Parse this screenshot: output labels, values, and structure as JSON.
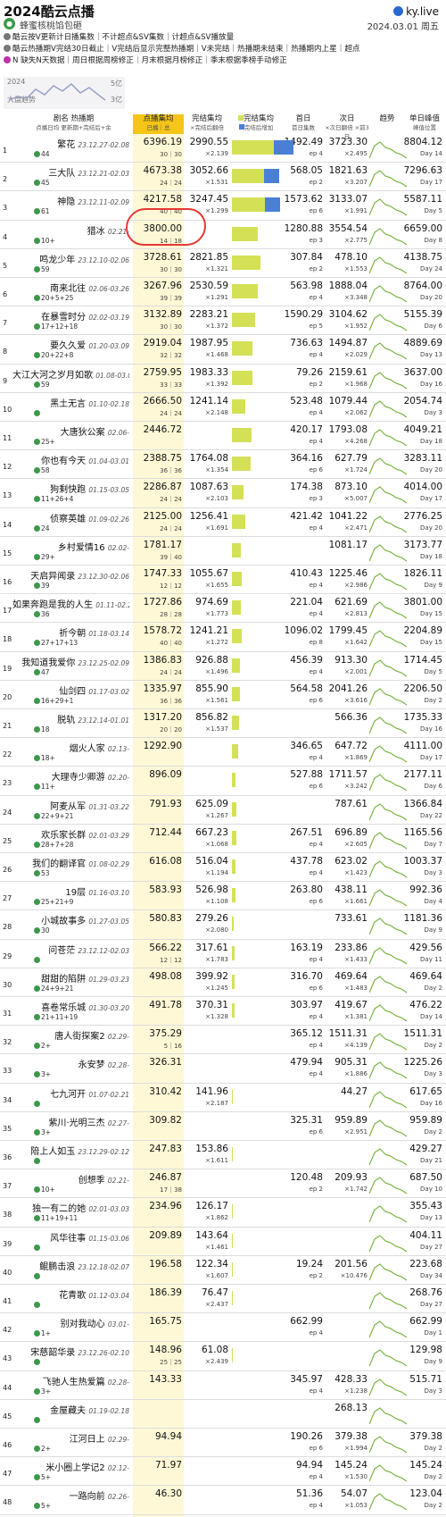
{
  "header": {
    "title": "2024酷云点播",
    "subtitle": "蜂蜜核桃馅包砸",
    "brand": "ky.live",
    "date": "2024.03.01 周五",
    "notes": [
      "酷云按V更新计日播集数｜不计超点&SV集数｜计超点&SV播放量",
      "酷云热播期V完结30日截止｜V完结后显示完整热播期｜V未完结｜热播期未结束｜热播期内上星｜超点",
      "N 缺失N天数据｜周日根据周榜修正｜月末根据月榜修正｜季末根据季榜手动修正"
    ],
    "mini": {
      "label": "大盘趋势",
      "year": "2024",
      "v1": "5亿",
      "v2": "3亿",
      "x": "3"
    }
  },
  "columns": {
    "name": "剧名 热播期",
    "name_sub": "点播日均 更新期+完结后+余",
    "avg": "点播集均",
    "avg_sub": "已播｜总",
    "done": "完结集均",
    "done_sub": "×完结后翻倍",
    "legend1": "完结集均",
    "legend2": "完结后增加",
    "first": "首日",
    "first_sub": "首日集数",
    "next": "次日",
    "next_sub": "×次日翻倍 ×前3日",
    "trend": "趋势",
    "peak": "单日峰值",
    "peak_sub": "峰值位置",
    "unit": "万"
  },
  "rows": [
    {
      "rank": "1",
      "name": "繁花",
      "date": "23.12.27-02.08",
      "ep": "44",
      "avg": "6396.19",
      "avg_sub": "30｜30",
      "done": "2990.55",
      "done_sub": "×2.139",
      "bar": 0.9,
      "first": "1492.49",
      "first_ep": "ep 4",
      "next": "3723.30",
      "next_sub": "×2.495",
      "peak": "8804.12",
      "peak_sub": "Day 14"
    },
    {
      "rank": "2",
      "name": "三大队",
      "date": "23.12.21-02.03",
      "ep": "45",
      "avg": "4673.38",
      "avg_sub": "24｜24",
      "done": "3052.66",
      "done_sub": "×1.531",
      "bar": 0.7,
      "first": "568.05",
      "first_ep": "ep 2",
      "next": "1821.63",
      "next_sub": "×3.207",
      "peak": "7296.63",
      "peak_sub": "Day 17"
    },
    {
      "rank": "3",
      "name": "神隐",
      "date": "23.12.11-02.09",
      "ep": "61",
      "avg": "4217.58",
      "avg_sub": "40｜40",
      "done": "3247.45",
      "done_sub": "×1.299",
      "bar": 0.72,
      "first": "1573.62",
      "first_ep": "ep 6",
      "next": "3133.07",
      "next_sub": "×1.991",
      "peak": "5587.11",
      "peak_sub": "Day 5"
    },
    {
      "rank": "4",
      "name": "猎冰",
      "date": "02.21-",
      "ep": "10+",
      "avg": "3800.00",
      "avg_sub": "14｜18",
      "done": "",
      "done_sub": "",
      "bar": 0.55,
      "first": "1280.88",
      "first_ep": "ep 3",
      "next": "3554.54",
      "next_sub": "×2.775",
      "peak": "6659.00",
      "peak_sub": "Day 8"
    },
    {
      "rank": "5",
      "name": "鸣龙少年",
      "date": "23.12.10-02.06",
      "ep": "59",
      "avg": "3728.61",
      "avg_sub": "30｜30",
      "done": "2821.85",
      "done_sub": "×1.321",
      "bar": 0.62,
      "first": "307.84",
      "first_ep": "ep 2",
      "next": "478.10",
      "next_sub": "×1.553",
      "peak": "4138.75",
      "peak_sub": "Day 24"
    },
    {
      "rank": "6",
      "name": "南来北往",
      "date": "02.06-03.26",
      "ep": "20+5+25",
      "avg": "3267.96",
      "avg_sub": "39｜39",
      "done": "2530.59",
      "done_sub": "×1.291",
      "bar": 0.56,
      "first": "563.98",
      "first_ep": "ep 4",
      "next": "1888.04",
      "next_sub": "×3.348",
      "peak": "8764.00",
      "peak_sub": "Day 20"
    },
    {
      "rank": "7",
      "name": "在暴雪时分",
      "date": "02.02-03.19",
      "ep": "17+12+18",
      "avg": "3132.89",
      "avg_sub": "30｜30",
      "done": "2283.21",
      "done_sub": "×1.372",
      "bar": 0.5,
      "first": "1590.29",
      "first_ep": "ep 5",
      "next": "3104.62",
      "next_sub": "×1.952",
      "peak": "5155.39",
      "peak_sub": "Day 6"
    },
    {
      "rank": "8",
      "name": "要久久爱",
      "date": "01.20-03.09",
      "ep": "20+22+8",
      "avg": "2919.04",
      "avg_sub": "32｜32",
      "done": "1987.95",
      "done_sub": "×1.468",
      "bar": 0.44,
      "first": "736.63",
      "first_ep": "ep 4",
      "next": "1494.87",
      "next_sub": "×2.029",
      "peak": "4889.69",
      "peak_sub": "Day 13"
    },
    {
      "rank": "9",
      "name": "大江大河之岁月如歌",
      "date": "01.08-03.01",
      "ep": "59",
      "avg": "2759.95",
      "avg_sub": "33｜33",
      "done": "1983.33",
      "done_sub": "×1.392",
      "bar": 0.44,
      "first": "79.26",
      "first_ep": "ep 2",
      "next": "2159.61",
      "next_sub": "×1.968",
      "peak": "3637.00",
      "peak_sub": "Day 16"
    },
    {
      "rank": "10",
      "name": "黑土无言",
      "date": "01.10-02.18",
      "ep": "",
      "avg": "2666.50",
      "avg_sub": "24｜24",
      "done": "1241.14",
      "done_sub": "×2.148",
      "bar": 0.28,
      "first": "523.48",
      "first_ep": "ep 4",
      "next": "1079.44",
      "next_sub": "×2.062",
      "peak": "2054.74",
      "peak_sub": "Day 3"
    },
    {
      "rank": "11",
      "name": "大唐狄公案",
      "date": "02.06-",
      "ep": "25+",
      "avg": "2446.72",
      "avg_sub": "",
      "done": "",
      "done_sub": "",
      "bar": 0.42,
      "first": "420.17",
      "first_ep": "ep 4",
      "next": "1793.08",
      "next_sub": "×4.268",
      "peak": "4049.21",
      "peak_sub": "Day 18"
    },
    {
      "rank": "12",
      "name": "你也有今天",
      "date": "01.04-03.01",
      "ep": "58",
      "avg": "2388.75",
      "avg_sub": "36｜36",
      "done": "1764.08",
      "done_sub": "×1.354",
      "bar": 0.4,
      "first": "364.16",
      "first_ep": "ep 6",
      "next": "627.79",
      "next_sub": "×1.724",
      "peak": "3283.11",
      "peak_sub": "Day 20"
    },
    {
      "rank": "13",
      "name": "狗剩快跑",
      "date": "01.15-03.05",
      "ep": "11+26+4",
      "avg": "2286.87",
      "avg_sub": "24｜24",
      "done": "1087.63",
      "done_sub": "×2.103",
      "bar": 0.25,
      "first": "174.38",
      "first_ep": "ep 3",
      "next": "873.10",
      "next_sub": "×5.007",
      "peak": "4014.00",
      "peak_sub": "Day 17"
    },
    {
      "rank": "14",
      "name": "侦察英雄",
      "date": "01.09-02.26",
      "ep": "24",
      "avg": "2125.00",
      "avg_sub": "24｜24",
      "done": "1256.41",
      "done_sub": "×1.691",
      "bar": 0.28,
      "first": "421.42",
      "first_ep": "ep 4",
      "next": "1041.22",
      "next_sub": "×2.471",
      "peak": "2776.25",
      "peak_sub": "Day 20"
    },
    {
      "rank": "15",
      "name": "乡村爱情16",
      "date": "02.02-",
      "ep": "29+",
      "avg": "1781.17",
      "avg_sub": "39｜40",
      "done": "",
      "done_sub": "",
      "bar": 0.2,
      "first": "",
      "first_ep": "",
      "next": "1081.17",
      "next_sub": "",
      "peak": "3173.77",
      "peak_sub": "Day 18"
    },
    {
      "rank": "16",
      "name": "天启异闻录",
      "date": "23.12.30-02.06",
      "ep": "39",
      "avg": "1747.33",
      "avg_sub": "12｜12",
      "done": "1055.67",
      "done_sub": "×1.655",
      "bar": 0.22,
      "first": "410.43",
      "first_ep": "ep 4",
      "next": "1225.46",
      "next_sub": "×2.986",
      "peak": "1826.11",
      "peak_sub": "Day 9"
    },
    {
      "rank": "17",
      "name": "如果奔跑是我的人生",
      "date": "01.11-02.22",
      "ep": "36",
      "avg": "1727.86",
      "avg_sub": "28｜28",
      "done": "974.69",
      "done_sub": "×1.773",
      "bar": 0.2,
      "first": "221.04",
      "first_ep": "ep 4",
      "next": "621.69",
      "next_sub": "×2.813",
      "peak": "3801.00",
      "peak_sub": "Day 15"
    },
    {
      "rank": "18",
      "name": "祈今朝",
      "date": "01.18-03.14",
      "ep": "27+17+13",
      "avg": "1578.72",
      "avg_sub": "40｜40",
      "done": "1241.21",
      "done_sub": "×1.272",
      "bar": 0.22,
      "first": "1096.02",
      "first_ep": "ep 8",
      "next": "1799.45",
      "next_sub": "×1.642",
      "peak": "2204.89",
      "peak_sub": "Day 15"
    },
    {
      "rank": "19",
      "name": "我知道我爱你",
      "date": "23.12.25-02.09",
      "ep": "47",
      "avg": "1386.83",
      "avg_sub": "24｜24",
      "done": "926.88",
      "done_sub": "×1.496",
      "bar": 0.18,
      "first": "456.39",
      "first_ep": "ep 4",
      "next": "913.30",
      "next_sub": "×2.001",
      "peak": "1714.45",
      "peak_sub": "Day 5"
    },
    {
      "rank": "20",
      "name": "仙剑四",
      "date": "01.17-03.02",
      "ep": "16+29+1",
      "avg": "1335.97",
      "avg_sub": "36｜36",
      "done": "855.90",
      "done_sub": "×1.561",
      "bar": 0.18,
      "first": "564.58",
      "first_ep": "ep 6",
      "next": "2041.26",
      "next_sub": "×3.616",
      "peak": "2206.50",
      "peak_sub": "Day 2"
    },
    {
      "rank": "21",
      "name": "脱轨",
      "date": "23.12.14-01.01",
      "ep": "18",
      "avg": "1317.20",
      "avg_sub": "20｜20",
      "done": "856.82",
      "done_sub": "×1.537",
      "bar": 0.16,
      "first": "",
      "first_ep": "",
      "next": "566.36",
      "next_sub": "",
      "peak": "1735.33",
      "peak_sub": "Day 16"
    },
    {
      "rank": "22",
      "name": "烟火人家",
      "date": "02.13-",
      "ep": "18+",
      "avg": "1292.90",
      "avg_sub": "",
      "done": "",
      "done_sub": "",
      "bar": 0.14,
      "first": "346.65",
      "first_ep": "ep 4",
      "next": "647.72",
      "next_sub": "×1.869",
      "peak": "4111.00",
      "peak_sub": "Day 17"
    },
    {
      "rank": "23",
      "name": "大理寺少卿游",
      "date": "02.20-",
      "ep": "11+",
      "avg": "896.09",
      "avg_sub": "",
      "done": "",
      "done_sub": "",
      "bar": 0.08,
      "first": "527.88",
      "first_ep": "ep 6",
      "next": "1711.57",
      "next_sub": "×3.242",
      "peak": "2177.11",
      "peak_sub": "Day 6"
    },
    {
      "rank": "24",
      "name": "阿麦从军",
      "date": "01.31-03.22",
      "ep": "22+9+21",
      "avg": "791.93",
      "avg_sub": "",
      "done": "625.09",
      "done_sub": "×1.267",
      "bar": 0.09,
      "first": "",
      "first_ep": "",
      "next": "787.61",
      "next_sub": "",
      "peak": "1366.84",
      "peak_sub": "Day 22"
    },
    {
      "rank": "25",
      "name": "欢乐家长群",
      "date": "02.01-03.29",
      "ep": "28+7+28",
      "avg": "712.44",
      "avg_sub": "",
      "done": "667.23",
      "done_sub": "×1.068",
      "bar": 0.1,
      "first": "267.51",
      "first_ep": "ep 4",
      "next": "696.89",
      "next_sub": "×2.605",
      "peak": "1165.56",
      "peak_sub": "Day 7"
    },
    {
      "rank": "26",
      "name": "我们的翻译官",
      "date": "01.08-02.29",
      "ep": "53",
      "avg": "616.08",
      "avg_sub": "",
      "done": "516.04",
      "done_sub": "×1.194",
      "bar": 0.07,
      "first": "437.78",
      "first_ep": "ep 4",
      "next": "623.02",
      "next_sub": "×1.423",
      "peak": "1003.37",
      "peak_sub": "Day 3"
    },
    {
      "rank": "27",
      "name": "19层",
      "date": "01.16-03.10",
      "ep": "25+21+9",
      "avg": "583.93",
      "avg_sub": "",
      "done": "526.98",
      "done_sub": "×1.108",
      "bar": 0.07,
      "first": "263.80",
      "first_ep": "ep 6",
      "next": "438.11",
      "next_sub": "×1.661",
      "peak": "992.36",
      "peak_sub": "Day 4"
    },
    {
      "rank": "28",
      "name": "小城故事多",
      "date": "01.27-03.05",
      "ep": "30",
      "avg": "580.83",
      "avg_sub": "",
      "done": "279.26",
      "done_sub": "×2.080",
      "bar": 0.04,
      "first": "",
      "first_ep": "",
      "next": "733.61",
      "next_sub": "",
      "peak": "1181.36",
      "peak_sub": "Day 9"
    },
    {
      "rank": "29",
      "name": "问苍茫",
      "date": "23.12.12-02.03",
      "ep": "",
      "avg": "566.22",
      "avg_sub": "12｜12",
      "done": "317.61",
      "done_sub": "×1.783",
      "bar": 0.05,
      "first": "163.19",
      "first_ep": "ep 4",
      "next": "233.86",
      "next_sub": "×1.433",
      "peak": "429.56",
      "peak_sub": "Day 11"
    },
    {
      "rank": "30",
      "name": "甜甜的陷阱",
      "date": "01.29-03.23",
      "ep": "24+9+21",
      "avg": "498.08",
      "avg_sub": "",
      "done": "399.92",
      "done_sub": "×1.245",
      "bar": 0.05,
      "first": "316.70",
      "first_ep": "ep 6",
      "next": "469.64",
      "next_sub": "×1.483",
      "peak": "469.64",
      "peak_sub": "Day 2"
    },
    {
      "rank": "31",
      "name": "喜卷常乐城",
      "date": "01.30-03.20",
      "ep": "21+11+19",
      "avg": "491.78",
      "avg_sub": "",
      "done": "370.31",
      "done_sub": "×1.328",
      "bar": 0.05,
      "first": "303.97",
      "first_ep": "ep 4",
      "next": "419.67",
      "next_sub": "×1.381",
      "peak": "476.22",
      "peak_sub": "Day 14"
    },
    {
      "rank": "32",
      "name": "唐人街探案2",
      "date": "02.29-",
      "ep": "2+",
      "avg": "375.29",
      "avg_sub": "5｜16",
      "done": "",
      "done_sub": "",
      "bar": 0,
      "first": "365.12",
      "first_ep": "ep 4",
      "next": "1511.31",
      "next_sub": "×4.139",
      "peak": "1511.31",
      "peak_sub": "Day 2"
    },
    {
      "rank": "33",
      "name": "永安梦",
      "date": "02.28-",
      "ep": "3+",
      "avg": "326.31",
      "avg_sub": "",
      "done": "",
      "done_sub": "",
      "bar": 0,
      "first": "479.94",
      "first_ep": "ep 4",
      "next": "905.31",
      "next_sub": "×1.886",
      "peak": "1225.26",
      "peak_sub": "Day 3"
    },
    {
      "rank": "34",
      "name": "七九河开",
      "date": "01.07-02.21",
      "ep": "",
      "avg": "310.42",
      "avg_sub": "",
      "done": "141.96",
      "done_sub": "×2.187",
      "bar": 0.02,
      "first": "",
      "first_ep": "",
      "next": "44.27",
      "next_sub": "",
      "peak": "617.65",
      "peak_sub": "Day 16"
    },
    {
      "rank": "35",
      "name": "紫川·光明三杰",
      "date": "02.27-",
      "ep": "3+",
      "avg": "309.82",
      "avg_sub": "",
      "done": "",
      "done_sub": "",
      "bar": 0,
      "first": "325.31",
      "first_ep": "ep 6",
      "next": "959.89",
      "next_sub": "×2.951",
      "peak": "959.89",
      "peak_sub": "Day 2"
    },
    {
      "rank": "36",
      "name": "陪上人如玉",
      "date": "23.12.29-02.12",
      "ep": "",
      "avg": "247.83",
      "avg_sub": "",
      "done": "153.86",
      "done_sub": "×1.611",
      "bar": 0.02,
      "first": "",
      "first_ep": "",
      "next": "",
      "next_sub": "",
      "peak": "429.27",
      "peak_sub": "Day 21"
    },
    {
      "rank": "37",
      "name": "创想季",
      "date": "02.21-",
      "ep": "10+",
      "avg": "246.87",
      "avg_sub": "17｜38",
      "done": "",
      "done_sub": "",
      "bar": 0,
      "first": "120.48",
      "first_ep": "ep 2",
      "next": "209.93",
      "next_sub": "×1.742",
      "peak": "687.50",
      "peak_sub": "Day 10"
    },
    {
      "rank": "38",
      "name": "独一有二的她",
      "date": "02.01-03.03",
      "ep": "11+19+11",
      "avg": "234.96",
      "avg_sub": "",
      "done": "126.17",
      "done_sub": "×1.862",
      "bar": 0.02,
      "first": "",
      "first_ep": "",
      "next": "",
      "next_sub": "",
      "peak": "355.43",
      "peak_sub": "Day 13"
    },
    {
      "rank": "39",
      "name": "风华往事",
      "date": "01.15-03.06",
      "ep": "",
      "avg": "209.89",
      "avg_sub": "",
      "done": "143.64",
      "done_sub": "×1.461",
      "bar": 0.02,
      "first": "",
      "first_ep": "",
      "next": "",
      "next_sub": "",
      "peak": "404.11",
      "peak_sub": "Day 27"
    },
    {
      "rank": "40",
      "name": "鲲鹏击浪",
      "date": "23.12.18-02.07",
      "ep": "",
      "avg": "196.58",
      "avg_sub": "",
      "done": "122.34",
      "done_sub": "×1.607",
      "bar": 0.02,
      "first": "19.24",
      "first_ep": "ep 2",
      "next": "201.56",
      "next_sub": "×10.476",
      "peak": "223.68",
      "peak_sub": "Day 34"
    },
    {
      "rank": "41",
      "name": "花青歌",
      "date": "01.12-03.04",
      "ep": "",
      "avg": "186.39",
      "avg_sub": "",
      "done": "76.47",
      "done_sub": "×2.437",
      "bar": 0.01,
      "first": "",
      "first_ep": "",
      "next": "",
      "next_sub": "",
      "peak": "268.76",
      "peak_sub": "Day 27"
    },
    {
      "rank": "42",
      "name": "别对我动心",
      "date": "03.01-",
      "ep": "1+",
      "avg": "165.75",
      "avg_sub": "",
      "done": "",
      "done_sub": "",
      "bar": 0,
      "first": "662.99",
      "first_ep": "ep 4",
      "next": "",
      "next_sub": "",
      "peak": "662.99",
      "peak_sub": "Day 1"
    },
    {
      "rank": "43",
      "name": "宋慈韶华录",
      "date": "23.12.26-02.10",
      "ep": "",
      "avg": "148.96",
      "avg_sub": "25｜25",
      "done": "61.08",
      "done_sub": "×2.439",
      "bar": 0.01,
      "first": "",
      "first_ep": "",
      "next": "",
      "next_sub": "",
      "peak": "129.98",
      "peak_sub": "Day 9"
    },
    {
      "rank": "44",
      "name": "飞驰人生热爱篇",
      "date": "02.28-",
      "ep": "3+",
      "avg": "143.33",
      "avg_sub": "",
      "done": "",
      "done_sub": "",
      "bar": 0,
      "first": "345.97",
      "first_ep": "ep 4",
      "next": "428.33",
      "next_sub": "×1.238",
      "peak": "515.71",
      "peak_sub": "Day 3"
    },
    {
      "rank": "45",
      "name": "金屋藏夫",
      "date": "01.19-02.18",
      "ep": "",
      "avg": "",
      "avg_sub": "",
      "done": "",
      "done_sub": "",
      "bar": 0,
      "first": "",
      "first_ep": "",
      "next": "268.13",
      "next_sub": "",
      "peak": "",
      "peak_sub": ""
    },
    {
      "rank": "46",
      "name": "江河日上",
      "date": "02.29-",
      "ep": "2+",
      "avg": "94.94",
      "avg_sub": "",
      "done": "",
      "done_sub": "",
      "bar": 0,
      "first": "190.26",
      "first_ep": "ep 6",
      "next": "379.38",
      "next_sub": "×1.994",
      "peak": "379.38",
      "peak_sub": "Day 2"
    },
    {
      "rank": "47",
      "name": "米小圈上学记2",
      "date": "02.12-",
      "ep": "5+",
      "avg": "71.97",
      "avg_sub": "",
      "done": "",
      "done_sub": "",
      "bar": 0,
      "first": "94.94",
      "first_ep": "ep 4",
      "next": "145.24",
      "next_sub": "×1.530",
      "peak": "145.24",
      "peak_sub": "Day 2"
    },
    {
      "rank": "48",
      "name": "一路向前",
      "date": "02.26-",
      "ep": "5+",
      "avg": "46.30",
      "avg_sub": "",
      "done": "",
      "done_sub": "",
      "bar": 0,
      "first": "51.36",
      "first_ep": "ep 4",
      "next": "54.07",
      "next_sub": "×1.053",
      "peak": "123.04",
      "peak_sub": "Day 2"
    }
  ],
  "colors": {
    "accent": "#f5c518",
    "bar_main": "#d4e157",
    "bar_after": "#4a7fd6",
    "trend": "#7cb342",
    "dot_red": "#e53935",
    "dot_blue": "#3f6fd8"
  }
}
